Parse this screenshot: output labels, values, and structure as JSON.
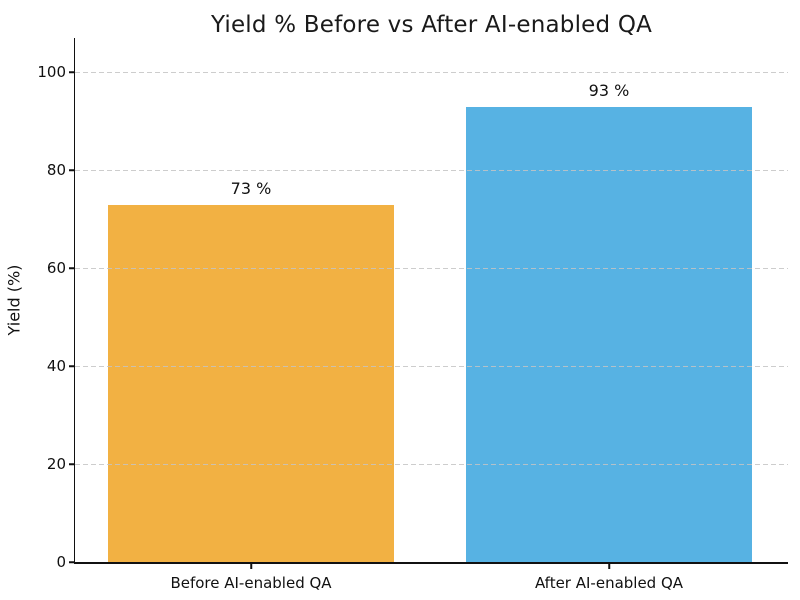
{
  "chart_data": {
    "type": "bar",
    "title": "Yield % Before vs After AI-enabled QA",
    "categories": [
      "Before AI-enabled QA",
      "After AI-enabled QA"
    ],
    "values": [
      73,
      93
    ],
    "bar_labels": [
      "73 %",
      "93 %"
    ],
    "bar_colors": [
      "#F2B143",
      "#57B2E3"
    ],
    "xlabel": "",
    "ylabel": "Yield (%)",
    "ylim": [
      0,
      107
    ],
    "yticks": [
      0,
      20,
      40,
      60,
      80,
      100
    ],
    "grid": "horizontal dashed gridlines drawn over bars",
    "grid_color": "#c4c4c4",
    "legend": "none",
    "spines": [
      "left",
      "bottom"
    ]
  }
}
